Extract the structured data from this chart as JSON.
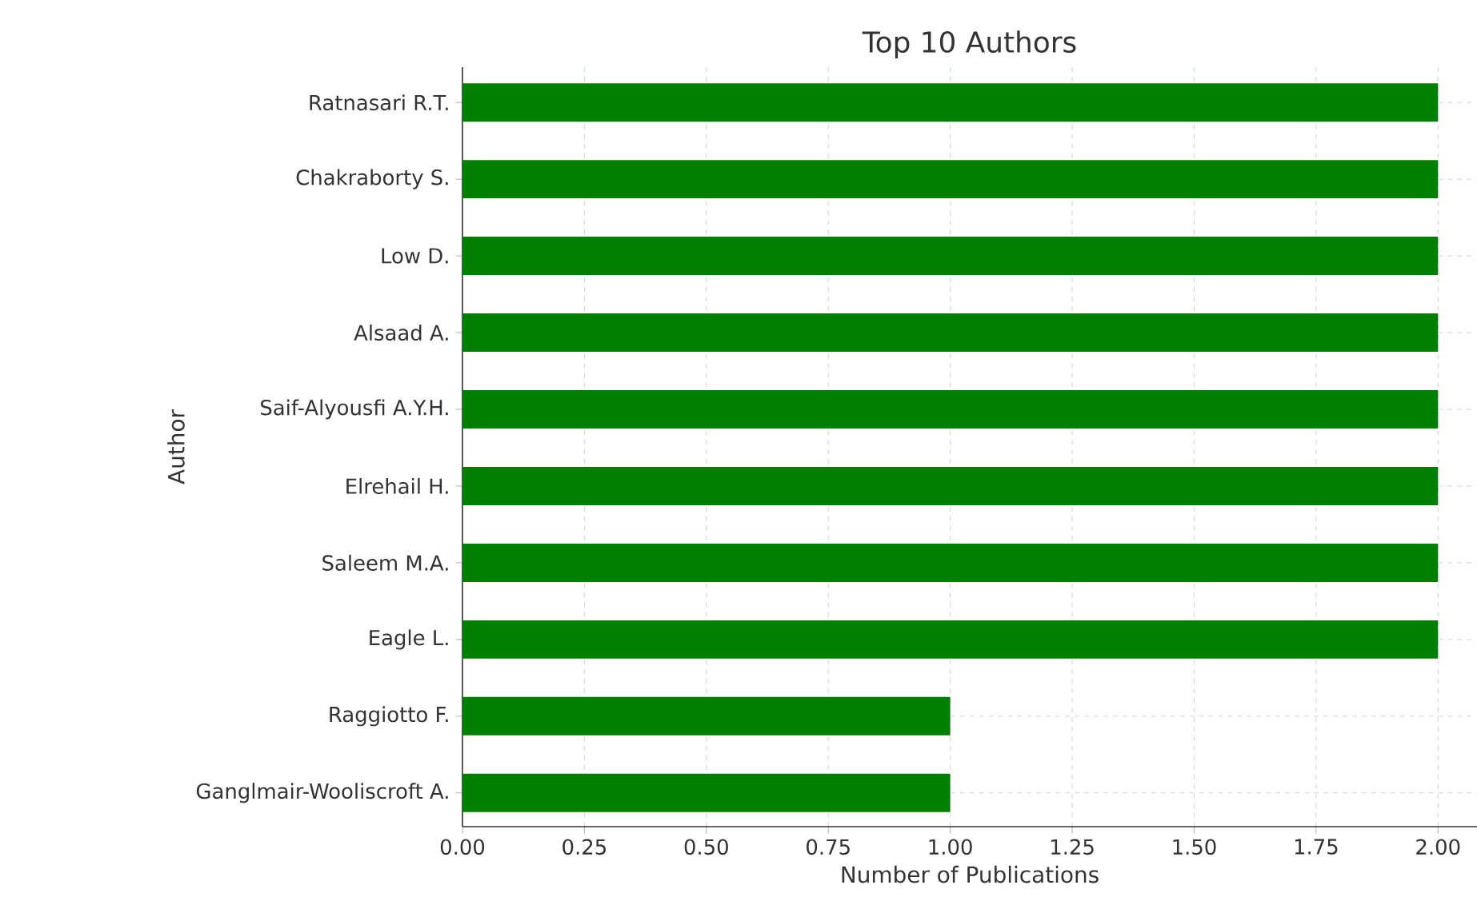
{
  "chart_data": {
    "type": "bar",
    "orientation": "horizontal",
    "title": "Top 10 Authors",
    "xlabel": "Number of Publications",
    "ylabel": "Author",
    "categories": [
      "Ratnasari R.T.",
      "Chakraborty S.",
      "Low D.",
      "Alsaad A.",
      "Saif-Alyousfi A.Y.H.",
      "Elrehail H.",
      "Saleem M.A.",
      "Eagle L.",
      "Raggiotto F.",
      "Ganglmair-Wooliscroft A."
    ],
    "values": [
      2,
      2,
      2,
      2,
      2,
      2,
      2,
      2,
      1,
      1
    ],
    "color": "#008000",
    "xlim": [
      0,
      2.08
    ],
    "xticks": [
      {
        "value": 0,
        "label": "0.00"
      },
      {
        "value": 0.25,
        "label": "0.25"
      },
      {
        "value": 0.5,
        "label": "0.50"
      },
      {
        "value": 0.75,
        "label": "0.75"
      },
      {
        "value": 1,
        "label": "1.00"
      },
      {
        "value": 1.25,
        "label": "1.25"
      },
      {
        "value": 1.5,
        "label": "1.50"
      },
      {
        "value": 1.75,
        "label": "1.75"
      },
      {
        "value": 2,
        "label": "2.00"
      }
    ],
    "grid": true
  }
}
